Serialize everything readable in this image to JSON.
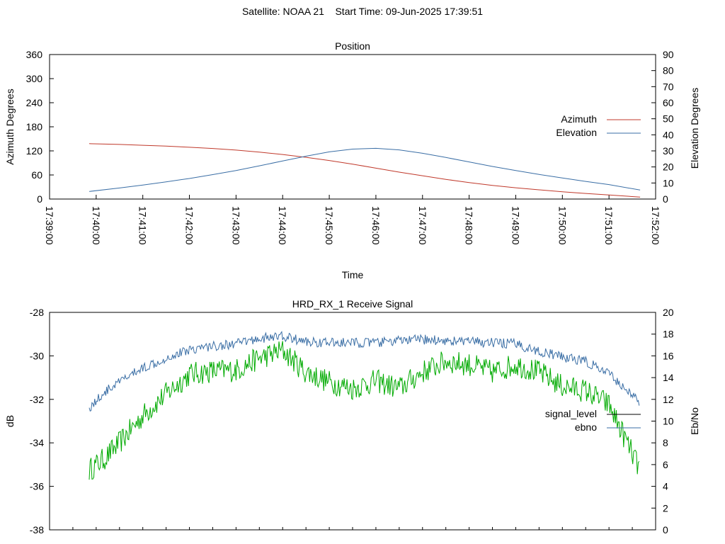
{
  "header": {
    "title": "Satellite: NOAA 21    Start Time: 09-Jun-2025 17:39:51"
  },
  "chart_data": [
    {
      "type": "line",
      "title": "Position",
      "xlabel": "Time",
      "ylabel": "Azimuth Degrees",
      "y2label": "Elevation Degrees",
      "xlim": [
        "17:39:00",
        "17:52:00"
      ],
      "xticks": [
        "17:39:00",
        "17:40:00",
        "17:41:00",
        "17:42:00",
        "17:43:00",
        "17:44:00",
        "17:45:00",
        "17:46:00",
        "17:47:00",
        "17:48:00",
        "17:49:00",
        "17:50:00",
        "17:51:00",
        "17:52:00"
      ],
      "ylim": [
        0,
        360
      ],
      "yticks": [
        0,
        60,
        120,
        180,
        240,
        300,
        360
      ],
      "y2lim": [
        0,
        90
      ],
      "y2ticks": [
        0,
        10,
        20,
        30,
        40,
        50,
        60,
        70,
        80,
        90
      ],
      "legend_position": "right",
      "grid": false,
      "series": [
        {
          "name": "Azimuth",
          "axis": "left",
          "color": "#c0392b",
          "x": [
            "17:39:51",
            "17:40:30",
            "17:41:00",
            "17:41:30",
            "17:42:00",
            "17:42:30",
            "17:43:00",
            "17:43:30",
            "17:44:00",
            "17:44:30",
            "17:45:00",
            "17:45:30",
            "17:46:00",
            "17:46:30",
            "17:47:00",
            "17:47:30",
            "17:48:00",
            "17:48:30",
            "17:49:00",
            "17:49:30",
            "17:50:00",
            "17:50:30",
            "17:51:00",
            "17:51:40"
          ],
          "values": [
            138,
            136,
            134,
            132,
            129,
            126,
            122,
            117,
            111,
            104,
            96,
            87,
            77,
            67,
            58,
            49,
            41,
            34,
            28,
            23,
            18,
            14,
            10,
            5
          ]
        },
        {
          "name": "Elevation",
          "axis": "right",
          "color": "#3a6ea5",
          "x": [
            "17:39:51",
            "17:40:30",
            "17:41:00",
            "17:41:30",
            "17:42:00",
            "17:42:30",
            "17:43:00",
            "17:43:30",
            "17:44:00",
            "17:44:30",
            "17:45:00",
            "17:45:30",
            "17:46:00",
            "17:46:30",
            "17:47:00",
            "17:47:30",
            "17:48:00",
            "17:48:30",
            "17:49:00",
            "17:49:30",
            "17:50:00",
            "17:50:30",
            "17:51:00",
            "17:51:40"
          ],
          "values": [
            4.7,
            6.9,
            8.7,
            10.7,
            12.8,
            15.2,
            17.8,
            20.7,
            23.7,
            26.7,
            29.4,
            31.1,
            31.6,
            30.6,
            28.5,
            25.9,
            23.1,
            20.3,
            17.8,
            15.3,
            13.1,
            11.0,
            9.0,
            5.6
          ]
        }
      ]
    },
    {
      "type": "line",
      "title": "HRD_RX_1 Receive Signal",
      "xlabel": "",
      "ylabel": "dB",
      "y2label": "Eb/No",
      "ylim": [
        -38,
        -28
      ],
      "yticks": [
        -38,
        -36,
        -34,
        -32,
        -30,
        -28
      ],
      "y2lim": [
        0,
        20
      ],
      "y2ticks": [
        0,
        2,
        4,
        6,
        8,
        10,
        12,
        14,
        16,
        18,
        20
      ],
      "xlim": [
        "17:39:00",
        "17:52:00"
      ],
      "legend_position": "right",
      "grid": false,
      "series": [
        {
          "name": "signal_level",
          "axis": "left",
          "color": "#000000",
          "values": []
        },
        {
          "name": "ebno",
          "axis": "right",
          "color": "#3a6ea5",
          "x": [
            "17:39:51",
            "17:40:10",
            "17:40:30",
            "17:41:00",
            "17:41:30",
            "17:42:00",
            "17:42:30",
            "17:43:00",
            "17:43:30",
            "17:44:00",
            "17:44:30",
            "17:45:00",
            "17:45:30",
            "17:46:00",
            "17:46:30",
            "17:47:00",
            "17:47:30",
            "17:48:00",
            "17:48:30",
            "17:49:00",
            "17:49:30",
            "17:50:00",
            "17:50:30",
            "17:51:00",
            "17:51:20",
            "17:51:40"
          ],
          "values": [
            11.2,
            12.6,
            13.6,
            14.9,
            15.8,
            16.6,
            16.9,
            17.1,
            17.6,
            17.8,
            17.3,
            17.2,
            17.2,
            17.2,
            17.4,
            17.5,
            17.4,
            17.3,
            17.2,
            17.1,
            16.4,
            15.9,
            15.5,
            14.3,
            13.1,
            11.6
          ]
        },
        {
          "name": "",
          "axis": "right",
          "color": "#00aa00",
          "x": [
            "17:39:51",
            "17:40:10",
            "17:40:30",
            "17:41:00",
            "17:41:30",
            "17:42:00",
            "17:42:30",
            "17:43:00",
            "17:43:30",
            "17:44:00",
            "17:44:30",
            "17:45:00",
            "17:45:30",
            "17:46:00",
            "17:46:30",
            "17:47:00",
            "17:47:30",
            "17:48:00",
            "17:48:30",
            "17:49:00",
            "17:49:30",
            "17:50:00",
            "17:50:30",
            "17:51:00",
            "17:51:20",
            "17:51:40"
          ],
          "values": [
            5.5,
            6.5,
            8.0,
            10.5,
            12.5,
            14.3,
            14.6,
            14.7,
            15.8,
            16.5,
            14.5,
            13.6,
            13.0,
            13.7,
            13.0,
            14.5,
            15.5,
            15.2,
            14.5,
            15.2,
            14.5,
            13.2,
            12.8,
            11.5,
            8.5,
            5.5
          ]
        }
      ]
    }
  ]
}
